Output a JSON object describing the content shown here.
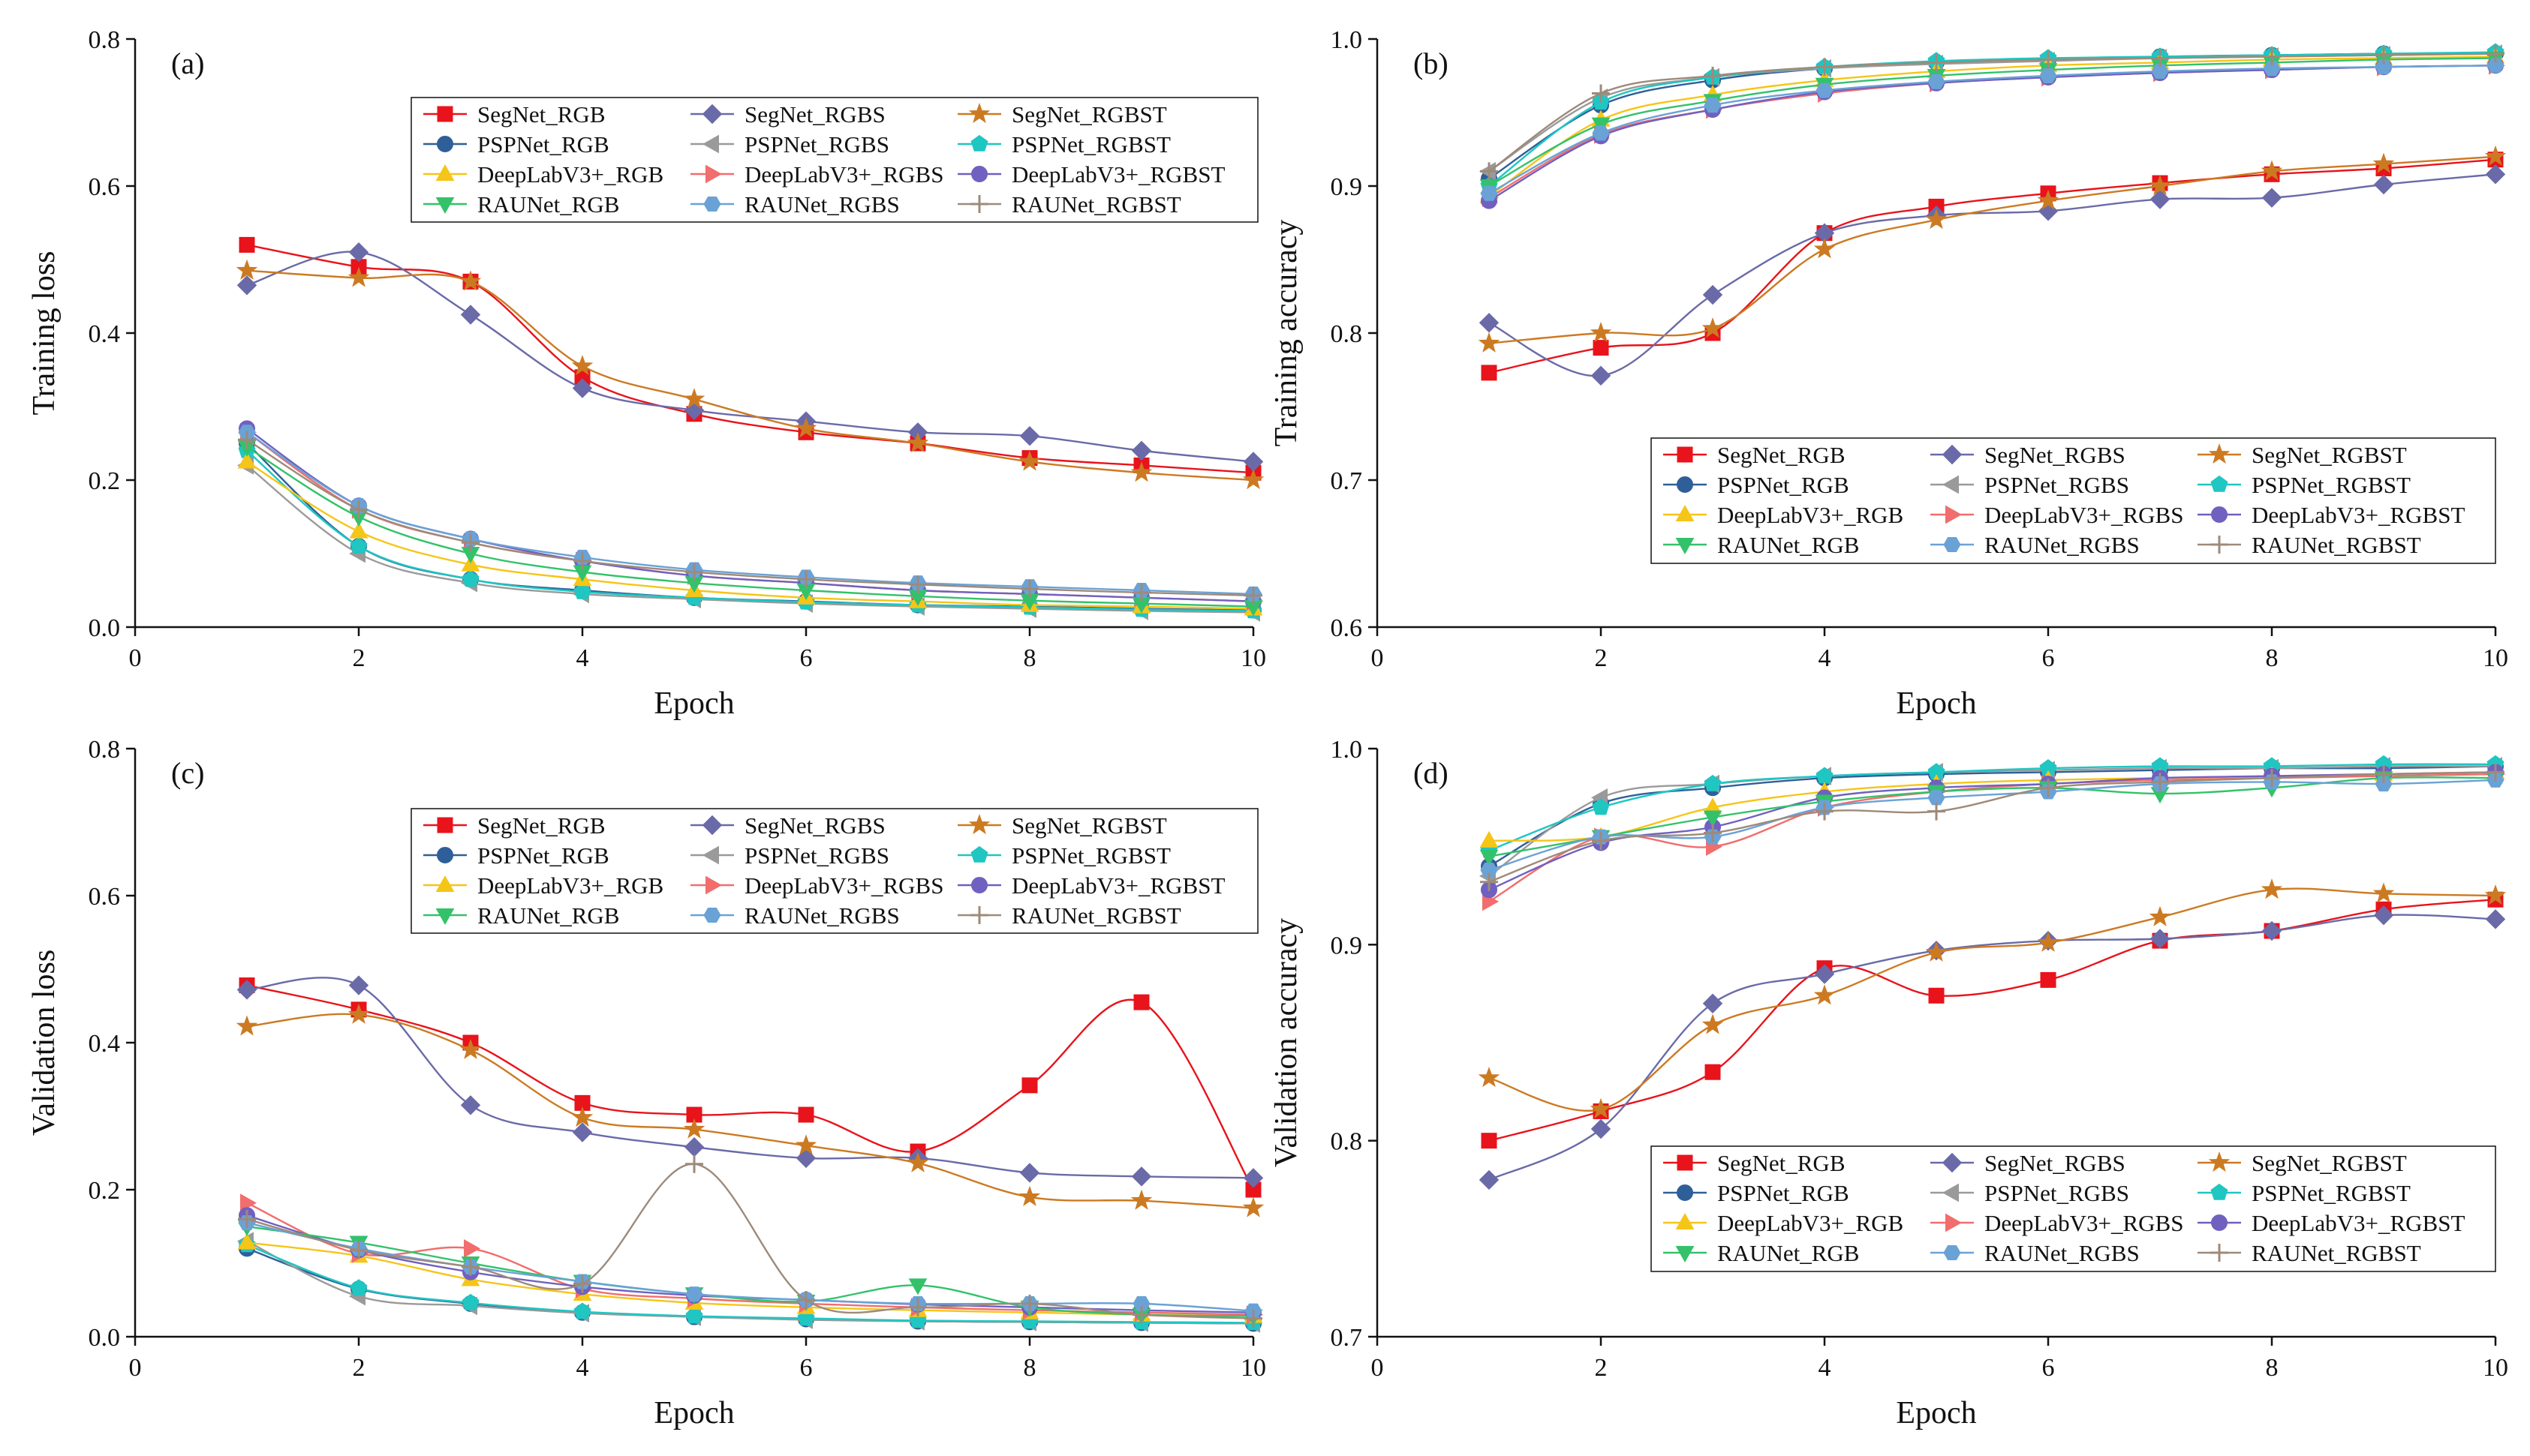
{
  "chart_data": [
    {
      "panel": "(a)",
      "type": "line",
      "title": "",
      "xlabel": "Epoch",
      "ylabel": "Training loss",
      "xlim": [
        0,
        10
      ],
      "ylim": [
        0,
        0.8
      ],
      "xticks": [
        0,
        2,
        4,
        6,
        8,
        10
      ],
      "yticks": [
        0.0,
        0.2,
        0.4,
        0.6,
        0.8
      ],
      "ytick_labels": [
        "0.0",
        "0.2",
        "0.4",
        "0.6",
        "0.8"
      ],
      "legend_position": "top-right",
      "x": [
        1,
        2,
        3,
        4,
        5,
        6,
        7,
        8,
        9,
        10
      ],
      "series": [
        {
          "name": "SegNet_RGB",
          "values": [
            0.52,
            0.49,
            0.47,
            0.34,
            0.29,
            0.265,
            0.25,
            0.23,
            0.22,
            0.21
          ]
        },
        {
          "name": "SegNet_RGBS",
          "values": [
            0.465,
            0.51,
            0.425,
            0.325,
            0.295,
            0.28,
            0.265,
            0.26,
            0.24,
            0.225
          ]
        },
        {
          "name": "SegNet_RGBST",
          "values": [
            0.485,
            0.475,
            0.47,
            0.355,
            0.31,
            0.27,
            0.25,
            0.225,
            0.21,
            0.2
          ]
        },
        {
          "name": "PSPNet_RGB",
          "values": [
            0.25,
            0.11,
            0.065,
            0.05,
            0.04,
            0.035,
            0.03,
            0.028,
            0.025,
            0.023
          ]
        },
        {
          "name": "PSPNet_RGBS",
          "values": [
            0.22,
            0.1,
            0.06,
            0.045,
            0.038,
            0.032,
            0.028,
            0.025,
            0.022,
            0.02
          ]
        },
        {
          "name": "PSPNet_RGBST",
          "values": [
            0.24,
            0.11,
            0.065,
            0.048,
            0.04,
            0.034,
            0.03,
            0.027,
            0.024,
            0.022
          ]
        },
        {
          "name": "DeepLabV3+_RGB",
          "values": [
            0.225,
            0.13,
            0.085,
            0.065,
            0.05,
            0.04,
            0.035,
            0.03,
            0.028,
            0.025
          ]
        },
        {
          "name": "DeepLabV3+_RGBS",
          "values": [
            0.265,
            0.16,
            0.115,
            0.09,
            0.07,
            0.06,
            0.05,
            0.045,
            0.04,
            0.035
          ]
        },
        {
          "name": "DeepLabV3+_RGBST",
          "values": [
            0.27,
            0.165,
            0.12,
            0.09,
            0.07,
            0.06,
            0.05,
            0.045,
            0.04,
            0.035
          ]
        },
        {
          "name": "RAUNet_RGB",
          "values": [
            0.245,
            0.15,
            0.1,
            0.075,
            0.06,
            0.05,
            0.042,
            0.036,
            0.032,
            0.028
          ]
        },
        {
          "name": "RAUNet_RGBS",
          "values": [
            0.265,
            0.165,
            0.12,
            0.095,
            0.078,
            0.068,
            0.06,
            0.055,
            0.05,
            0.045
          ]
        },
        {
          "name": "RAUNet_RGBST",
          "values": [
            0.255,
            0.16,
            0.115,
            0.09,
            0.075,
            0.065,
            0.058,
            0.052,
            0.047,
            0.043
          ]
        }
      ]
    },
    {
      "panel": "(b)",
      "type": "line",
      "title": "",
      "xlabel": "Epoch",
      "ylabel": "Training accuracy",
      "xlim": [
        0,
        10
      ],
      "ylim": [
        0.6,
        1.0
      ],
      "xticks": [
        0,
        2,
        4,
        6,
        8,
        10
      ],
      "yticks": [
        0.6,
        0.7,
        0.8,
        0.9,
        1.0
      ],
      "ytick_labels": [
        "0.6",
        "0.7",
        "0.8",
        "0.9",
        "1.0"
      ],
      "legend_position": "bottom-right",
      "x": [
        1,
        2,
        3,
        4,
        5,
        6,
        7,
        8,
        9,
        10
      ],
      "series": [
        {
          "name": "SegNet_RGB",
          "values": [
            0.773,
            0.79,
            0.8,
            0.868,
            0.886,
            0.895,
            0.902,
            0.908,
            0.912,
            0.918
          ]
        },
        {
          "name": "SegNet_RGBS",
          "values": [
            0.807,
            0.771,
            0.826,
            0.868,
            0.88,
            0.883,
            0.891,
            0.892,
            0.901,
            0.908
          ]
        },
        {
          "name": "SegNet_RGBST",
          "values": [
            0.793,
            0.8,
            0.803,
            0.857,
            0.877,
            0.89,
            0.9,
            0.91,
            0.915,
            0.92
          ]
        },
        {
          "name": "PSPNet_RGB",
          "values": [
            0.905,
            0.955,
            0.972,
            0.98,
            0.984,
            0.986,
            0.988,
            0.989,
            0.99,
            0.99
          ]
        },
        {
          "name": "PSPNet_RGBS",
          "values": [
            0.91,
            0.96,
            0.974,
            0.98,
            0.983,
            0.985,
            0.987,
            0.988,
            0.989,
            0.99
          ]
        },
        {
          "name": "PSPNet_RGBST",
          "values": [
            0.9,
            0.957,
            0.974,
            0.981,
            0.985,
            0.987,
            0.988,
            0.989,
            0.99,
            0.991
          ]
        },
        {
          "name": "DeepLabV3+_RGB",
          "values": [
            0.893,
            0.945,
            0.962,
            0.972,
            0.978,
            0.982,
            0.984,
            0.986,
            0.987,
            0.988
          ]
        },
        {
          "name": "DeepLabV3+_RGBS",
          "values": [
            0.892,
            0.935,
            0.952,
            0.963,
            0.97,
            0.974,
            0.977,
            0.979,
            0.981,
            0.982
          ]
        },
        {
          "name": "DeepLabV3+_RGBST",
          "values": [
            0.89,
            0.934,
            0.952,
            0.964,
            0.97,
            0.974,
            0.977,
            0.979,
            0.981,
            0.982
          ]
        },
        {
          "name": "RAUNet_RGB",
          "values": [
            0.9,
            0.942,
            0.958,
            0.969,
            0.975,
            0.979,
            0.982,
            0.984,
            0.986,
            0.987
          ]
        },
        {
          "name": "RAUNet_RGBS",
          "values": [
            0.895,
            0.936,
            0.955,
            0.965,
            0.971,
            0.975,
            0.978,
            0.98,
            0.981,
            0.982
          ]
        },
        {
          "name": "RAUNet_RGBST",
          "values": [
            0.91,
            0.963,
            0.975,
            0.981,
            0.984,
            0.986,
            0.987,
            0.988,
            0.989,
            0.99
          ]
        }
      ]
    },
    {
      "panel": "(c)",
      "type": "line",
      "title": "",
      "xlabel": "Epoch",
      "ylabel": "Validation loss",
      "xlim": [
        0,
        10
      ],
      "ylim": [
        0,
        0.8
      ],
      "xticks": [
        0,
        2,
        4,
        6,
        8,
        10
      ],
      "yticks": [
        0.0,
        0.2,
        0.4,
        0.6,
        0.8
      ],
      "ytick_labels": [
        "0.0",
        "0.2",
        "0.4",
        "0.6",
        "0.8"
      ],
      "legend_position": "top-right",
      "x": [
        1,
        2,
        3,
        4,
        5,
        6,
        7,
        8,
        9,
        10
      ],
      "series": [
        {
          "name": "SegNet_RGB",
          "values": [
            0.478,
            0.445,
            0.4,
            0.318,
            0.302,
            0.302,
            0.252,
            0.342,
            0.455,
            0.2
          ]
        },
        {
          "name": "SegNet_RGBS",
          "values": [
            0.472,
            0.478,
            0.315,
            0.278,
            0.258,
            0.243,
            0.243,
            0.223,
            0.218,
            0.216
          ]
        },
        {
          "name": "SegNet_RGBST",
          "values": [
            0.422,
            0.438,
            0.39,
            0.298,
            0.282,
            0.26,
            0.236,
            0.19,
            0.185,
            0.175
          ]
        },
        {
          "name": "PSPNet_RGB",
          "values": [
            0.12,
            0.065,
            0.045,
            0.033,
            0.027,
            0.024,
            0.021,
            0.02,
            0.019,
            0.018
          ]
        },
        {
          "name": "PSPNet_RGBS",
          "values": [
            0.13,
            0.055,
            0.042,
            0.032,
            0.027,
            0.023,
            0.021,
            0.02,
            0.019,
            0.018
          ]
        },
        {
          "name": "PSPNet_RGBST",
          "values": [
            0.125,
            0.066,
            0.046,
            0.034,
            0.028,
            0.025,
            0.022,
            0.021,
            0.02,
            0.019
          ]
        },
        {
          "name": "DeepLabV3+_RGB",
          "values": [
            0.128,
            0.11,
            0.078,
            0.058,
            0.046,
            0.04,
            0.036,
            0.033,
            0.03,
            0.028
          ]
        },
        {
          "name": "DeepLabV3+_RGBS",
          "values": [
            0.182,
            0.113,
            0.12,
            0.065,
            0.052,
            0.045,
            0.04,
            0.036,
            0.033,
            0.03
          ]
        },
        {
          "name": "DeepLabV3+_RGBST",
          "values": [
            0.165,
            0.118,
            0.088,
            0.068,
            0.056,
            0.05,
            0.044,
            0.04,
            0.036,
            0.033
          ]
        },
        {
          "name": "RAUNet_RGB",
          "values": [
            0.15,
            0.128,
            0.1,
            0.075,
            0.058,
            0.048,
            0.07,
            0.04,
            0.03,
            0.028
          ]
        },
        {
          "name": "RAUNet_RGBS",
          "values": [
            0.155,
            0.12,
            0.095,
            0.075,
            0.058,
            0.05,
            0.045,
            0.045,
            0.045,
            0.035
          ]
        },
        {
          "name": "RAUNet_RGBST",
          "values": [
            0.16,
            0.118,
            0.095,
            0.072,
            0.235,
            0.05,
            0.04,
            0.045,
            0.03,
            0.025
          ]
        }
      ]
    },
    {
      "panel": "(d)",
      "type": "line",
      "title": "",
      "xlabel": "Epoch",
      "ylabel": "Validation accuracy",
      "xlim": [
        0,
        10
      ],
      "ylim": [
        0.7,
        1.0
      ],
      "xticks": [
        0,
        2,
        4,
        6,
        8,
        10
      ],
      "yticks": [
        0.7,
        0.8,
        0.9,
        1.0
      ],
      "ytick_labels": [
        "0.7",
        "0.8",
        "0.9",
        "1.0"
      ],
      "legend_position": "bottom-right",
      "x": [
        1,
        2,
        3,
        4,
        5,
        6,
        7,
        8,
        9,
        10
      ],
      "series": [
        {
          "name": "SegNet_RGB",
          "values": [
            0.8,
            0.815,
            0.835,
            0.888,
            0.874,
            0.882,
            0.902,
            0.907,
            0.918,
            0.923
          ]
        },
        {
          "name": "SegNet_RGBS",
          "values": [
            0.78,
            0.806,
            0.87,
            0.885,
            0.897,
            0.902,
            0.903,
            0.907,
            0.915,
            0.913
          ]
        },
        {
          "name": "SegNet_RGBST",
          "values": [
            0.832,
            0.816,
            0.859,
            0.874,
            0.896,
            0.901,
            0.914,
            0.928,
            0.926,
            0.925
          ]
        },
        {
          "name": "PSPNet_RGB",
          "values": [
            0.94,
            0.972,
            0.98,
            0.985,
            0.987,
            0.988,
            0.989,
            0.99,
            0.99,
            0.991
          ]
        },
        {
          "name": "PSPNet_RGBS",
          "values": [
            0.935,
            0.975,
            0.982,
            0.986,
            0.988,
            0.989,
            0.99,
            0.99,
            0.991,
            0.991
          ]
        },
        {
          "name": "PSPNet_RGBST",
          "values": [
            0.948,
            0.97,
            0.982,
            0.986,
            0.988,
            0.99,
            0.991,
            0.991,
            0.992,
            0.992
          ]
        },
        {
          "name": "DeepLabV3+_RGB",
          "values": [
            0.953,
            0.955,
            0.97,
            0.978,
            0.982,
            0.984,
            0.985,
            0.986,
            0.987,
            0.988
          ]
        },
        {
          "name": "DeepLabV3+_RGBS",
          "values": [
            0.922,
            0.955,
            0.95,
            0.97,
            0.978,
            0.982,
            0.984,
            0.985,
            0.986,
            0.987
          ]
        },
        {
          "name": "DeepLabV3+_RGBST",
          "values": [
            0.928,
            0.952,
            0.96,
            0.975,
            0.98,
            0.982,
            0.985,
            0.986,
            0.987,
            0.988
          ]
        },
        {
          "name": "RAUNet_RGB",
          "values": [
            0.945,
            0.955,
            0.965,
            0.973,
            0.978,
            0.98,
            0.977,
            0.98,
            0.985,
            0.985
          ]
        },
        {
          "name": "RAUNet_RGBS",
          "values": [
            0.938,
            0.955,
            0.955,
            0.97,
            0.975,
            0.978,
            0.982,
            0.983,
            0.982,
            0.984
          ]
        },
        {
          "name": "RAUNet_RGBST",
          "values": [
            0.932,
            0.953,
            0.957,
            0.968,
            0.968,
            0.98,
            0.983,
            0.985,
            0.987,
            0.988
          ]
        }
      ]
    }
  ],
  "series_styles": {
    "SegNet_RGB": {
      "color": "#e8131b",
      "marker": "square"
    },
    "SegNet_RGBS": {
      "color": "#6a6aa8",
      "marker": "diamond"
    },
    "SegNet_RGBST": {
      "color": "#cc7a22",
      "marker": "star"
    },
    "PSPNet_RGB": {
      "color": "#2f5f99",
      "marker": "circle"
    },
    "PSPNet_RGBS": {
      "color": "#9a9a9a",
      "marker": "triangle-left"
    },
    "PSPNet_RGBST": {
      "color": "#1fc6c2",
      "marker": "pentagon"
    },
    "DeepLabV3+_RGB": {
      "color": "#f5c518",
      "marker": "triangle-up"
    },
    "DeepLabV3+_RGBS": {
      "color": "#f26d6d",
      "marker": "triangle-right"
    },
    "DeepLabV3+_RGBST": {
      "color": "#7060c0",
      "marker": "circle"
    },
    "RAUNet_RGB": {
      "color": "#33c26a",
      "marker": "triangle-down"
    },
    "RAUNet_RGBS": {
      "color": "#6aa2d6",
      "marker": "hexagon"
    },
    "RAUNet_RGBST": {
      "color": "#9e8a7a",
      "marker": "plus"
    }
  },
  "legend_order": [
    "SegNet_RGB",
    "SegNet_RGBS",
    "SegNet_RGBST",
    "PSPNet_RGB",
    "PSPNet_RGBS",
    "PSPNet_RGBST",
    "DeepLabV3+_RGB",
    "DeepLabV3+_RGBS",
    "DeepLabV3+_RGBST",
    "RAUNet_RGB",
    "RAUNet_RGBS",
    "RAUNet_RGBST"
  ]
}
